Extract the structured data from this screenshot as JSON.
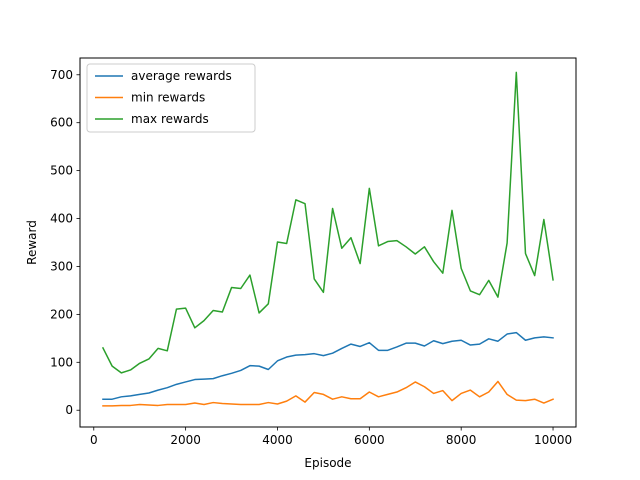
{
  "chart_data": {
    "type": "line",
    "title": "",
    "xlabel": "Episode",
    "ylabel": "Reward",
    "xlim": [
      -300,
      10500
    ],
    "ylim": [
      -35,
      735
    ],
    "xticks": [
      0,
      2000,
      4000,
      6000,
      8000,
      10000
    ],
    "yticks": [
      0,
      100,
      200,
      300,
      400,
      500,
      600,
      700
    ],
    "legend_position": "upper-left",
    "grid": false,
    "x": [
      200,
      400,
      600,
      800,
      1000,
      1200,
      1400,
      1600,
      1800,
      2000,
      2200,
      2400,
      2600,
      2800,
      3000,
      3200,
      3400,
      3600,
      3800,
      4000,
      4200,
      4400,
      4600,
      4800,
      5000,
      5200,
      5400,
      5600,
      5800,
      6000,
      6200,
      6400,
      6600,
      6800,
      7000,
      7200,
      7400,
      7600,
      7800,
      8000,
      8200,
      8400,
      8600,
      8800,
      9000,
      9200,
      9400,
      9600,
      9800,
      10000
    ],
    "series": [
      {
        "name": "average rewards",
        "color": "#1f77b4",
        "values": [
          23,
          23,
          28,
          30,
          33,
          36,
          42,
          47,
          54,
          59,
          64,
          65,
          66,
          72,
          77,
          83,
          93,
          92,
          85,
          103,
          111,
          115,
          116,
          118,
          114,
          119,
          129,
          138,
          133,
          141,
          125,
          125,
          132,
          140,
          140,
          134,
          145,
          139,
          144,
          146,
          136,
          138,
          149,
          144,
          159,
          162,
          146,
          151,
          153,
          151
        ]
      },
      {
        "name": "min rewards",
        "color": "#ff7f0e",
        "values": [
          9,
          9,
          10,
          10,
          12,
          11,
          10,
          12,
          12,
          12,
          15,
          12,
          16,
          14,
          13,
          12,
          12,
          12,
          16,
          13,
          19,
          30,
          17,
          37,
          33,
          23,
          28,
          24,
          24,
          38,
          28,
          33,
          38,
          47,
          59,
          49,
          35,
          41,
          20,
          35,
          42,
          28,
          38,
          60,
          33,
          21,
          20,
          23,
          15,
          23
        ]
      },
      {
        "name": "max rewards",
        "color": "#2ca02c",
        "values": [
          130,
          92,
          78,
          84,
          98,
          107,
          129,
          124,
          211,
          213,
          172,
          187,
          208,
          205,
          256,
          254,
          282,
          203,
          222,
          351,
          348,
          439,
          431,
          274,
          246,
          421,
          338,
          360,
          306,
          463,
          343,
          352,
          354,
          341,
          326,
          341,
          310,
          286,
          417,
          296,
          249,
          241,
          271,
          236,
          349,
          705,
          327,
          281,
          398,
          272
        ]
      }
    ]
  }
}
